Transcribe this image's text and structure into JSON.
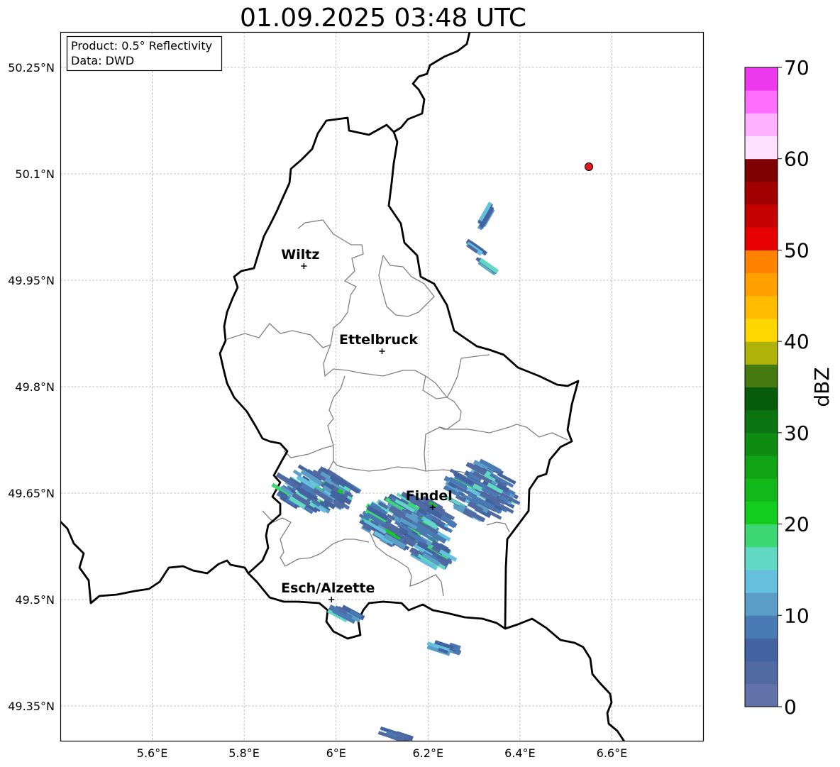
{
  "title": "01.09.2025 03:48 UTC",
  "info_box": {
    "product": "Product: 0.5° Reflectivity",
    "data_source": "Data: DWD"
  },
  "map": {
    "extent": {
      "lon_min": 5.4,
      "lon_max": 6.8,
      "lat_min": 49.3,
      "lat_max": 50.3
    },
    "grid": true,
    "lon_ticks": [
      "5.6°E",
      "5.8°E",
      "6°E",
      "6.2°E",
      "6.4°E",
      "6.6°E"
    ],
    "lat_ticks": [
      "50.25°N",
      "50.1°N",
      "49.95°N",
      "49.8°N",
      "49.65°N",
      "49.5°N",
      "49.35°N"
    ],
    "cities": [
      {
        "name": "Wiltz",
        "lon": 5.93,
        "lat": 49.97
      },
      {
        "name": "Ettelbruck",
        "lon": 6.1,
        "lat": 49.85
      },
      {
        "name": "Findel",
        "lon": 6.21,
        "lat": 49.63
      },
      {
        "name": "Esch/Alzette",
        "lon": 5.99,
        "lat": 49.5
      }
    ],
    "radar_site": {
      "lon": 6.55,
      "lat": 50.11,
      "color": "#e8141e"
    }
  },
  "colorbar": {
    "label": "dBZ",
    "ticks": [
      "0",
      "10",
      "20",
      "30",
      "40",
      "50",
      "60",
      "70"
    ],
    "min": 0,
    "max": 70,
    "step": 2.5,
    "colors": [
      "#6272a8",
      "#526aa2",
      "#4262a0",
      "#4a7ab4",
      "#5a9ec8",
      "#64c0dc",
      "#60d8c4",
      "#3cd874",
      "#14cc1e",
      "#12b81a",
      "#10a414",
      "#0e8c12",
      "#0a7410",
      "#075c0c",
      "#447a10",
      "#b0b40a",
      "#ffd700",
      "#ffbb00",
      "#ff9f00",
      "#ff8200",
      "#e60000",
      "#c40000",
      "#a00000",
      "#7e0000",
      "#ffe0ff",
      "#ffb2ff",
      "#ff6eff",
      "#ee3aee"
    ]
  }
}
